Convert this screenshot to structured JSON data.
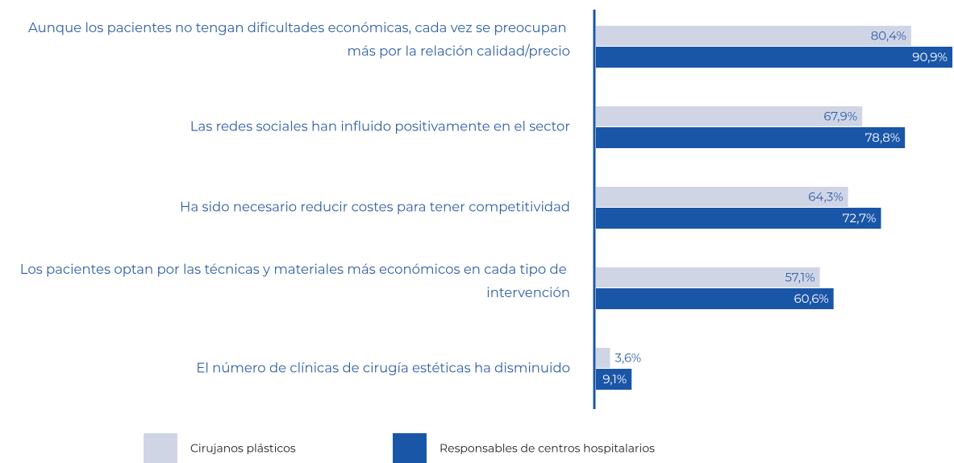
{
  "chart_data": {
    "type": "hbar",
    "categories": [
      "Aunque los pacientes no tengan dificultades económicas, cada vez se preocupan más por la relación calidad/precio",
      "Las redes sociales han influido positivamente en el sector",
      "Ha sido necesario reducir costes para tener competitividad",
      "Los pacientes optan por las técnicas y materiales más económicos en cada tipo de intervención",
      "El número de clínicas de cirugía estéticas ha disminuido"
    ],
    "series": [
      {
        "name": "Cirujanos plásticos",
        "color": "#d0d5e6",
        "values": [
          80.4,
          67.9,
          64.3,
          57.1,
          3.6
        ],
        "value_labels": [
          "80,4%",
          "67,9%",
          "64,3%",
          "57,1%",
          "3,6%"
        ]
      },
      {
        "name": "Responsables de centros hospitalarios",
        "color": "#1a56a8",
        "values": [
          90.9,
          78.8,
          72.7,
          60.6,
          9.1
        ],
        "value_labels": [
          "90,9%",
          "78,8%",
          "72,7%",
          "60,6%",
          "9,1%"
        ]
      }
    ],
    "legend": "bottom"
  }
}
